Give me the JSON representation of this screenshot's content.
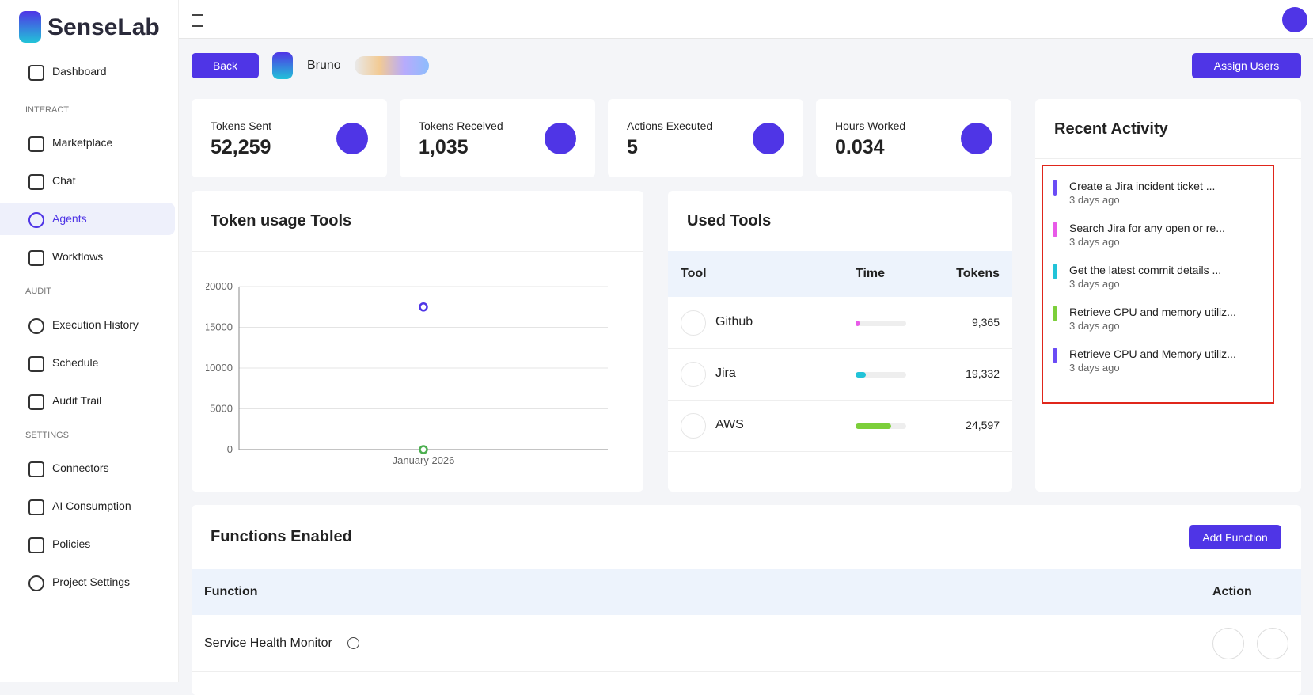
{
  "brand": "SenseLab",
  "nav": {
    "dashboard": "Dashboard",
    "interact": "INTERACT",
    "marketplace": "Marketplace",
    "chat": "Chat",
    "agents": "Agents",
    "workflows": "Workflows",
    "audit": "AUDIT",
    "execution_history": "Execution History",
    "schedule": "Schedule",
    "audit_trail": "Audit Trail",
    "settings": "SETTINGS",
    "connectors": "Connectors",
    "ai_consumption": "AI Consumption",
    "policies": "Policies",
    "project_settings": "Project Settings"
  },
  "header": {
    "back": "Back",
    "agent": "Bruno",
    "assign": "Assign Users"
  },
  "stats": [
    {
      "label": "Tokens Sent",
      "value": "52,259"
    },
    {
      "label": "Tokens Received",
      "value": "1,035"
    },
    {
      "label": "Actions Executed",
      "value": "5"
    },
    {
      "label": "Hours Worked",
      "value": "0.034"
    }
  ],
  "activity": {
    "title": "Recent Activity",
    "items": [
      {
        "text": "Create a Jira incident ticket ...",
        "time": "3 days ago",
        "color": "#6b4cf5"
      },
      {
        "text": "Search Jira for any open or re...",
        "time": "3 days ago",
        "color": "#e85ae8"
      },
      {
        "text": "Get the latest commit details ...",
        "time": "3 days ago",
        "color": "#22c3d8"
      },
      {
        "text": "Retrieve CPU and memory utiliz...",
        "time": "3 days ago",
        "color": "#7ccf3a"
      },
      {
        "text": "Retrieve CPU and Memory utiliz...",
        "time": "3 days ago",
        "color": "#6b4cf5"
      }
    ]
  },
  "chart_data": {
    "type": "scatter",
    "title": "Token usage Tools",
    "categories": [
      "January 2026"
    ],
    "ylim": [
      0,
      20000
    ],
    "yticks": [
      0,
      5000,
      10000,
      15000,
      20000
    ],
    "grid": true,
    "series": [
      {
        "color": "#4f35e6",
        "values": [
          17500
        ]
      },
      {
        "color": "#4caf50",
        "values": [
          0
        ]
      }
    ]
  },
  "tools": {
    "title": "Used Tools",
    "columns": [
      "Tool",
      "Time",
      "Tokens"
    ],
    "rows": [
      {
        "name": "Github",
        "time": 0.08,
        "tokens": "9,365",
        "color": "#e85ae8"
      },
      {
        "name": "Jira",
        "time": 0.2,
        "tokens": "19,332",
        "color": "#22c3d8"
      },
      {
        "name": "AWS",
        "time": 0.7,
        "tokens": "24,597",
        "color": "#7ccf3a"
      }
    ]
  },
  "functions": {
    "title": "Functions Enabled",
    "add": "Add Function",
    "columns": [
      "Function",
      "Action"
    ],
    "rows": [
      {
        "name": "Service Health Monitor"
      }
    ]
  }
}
